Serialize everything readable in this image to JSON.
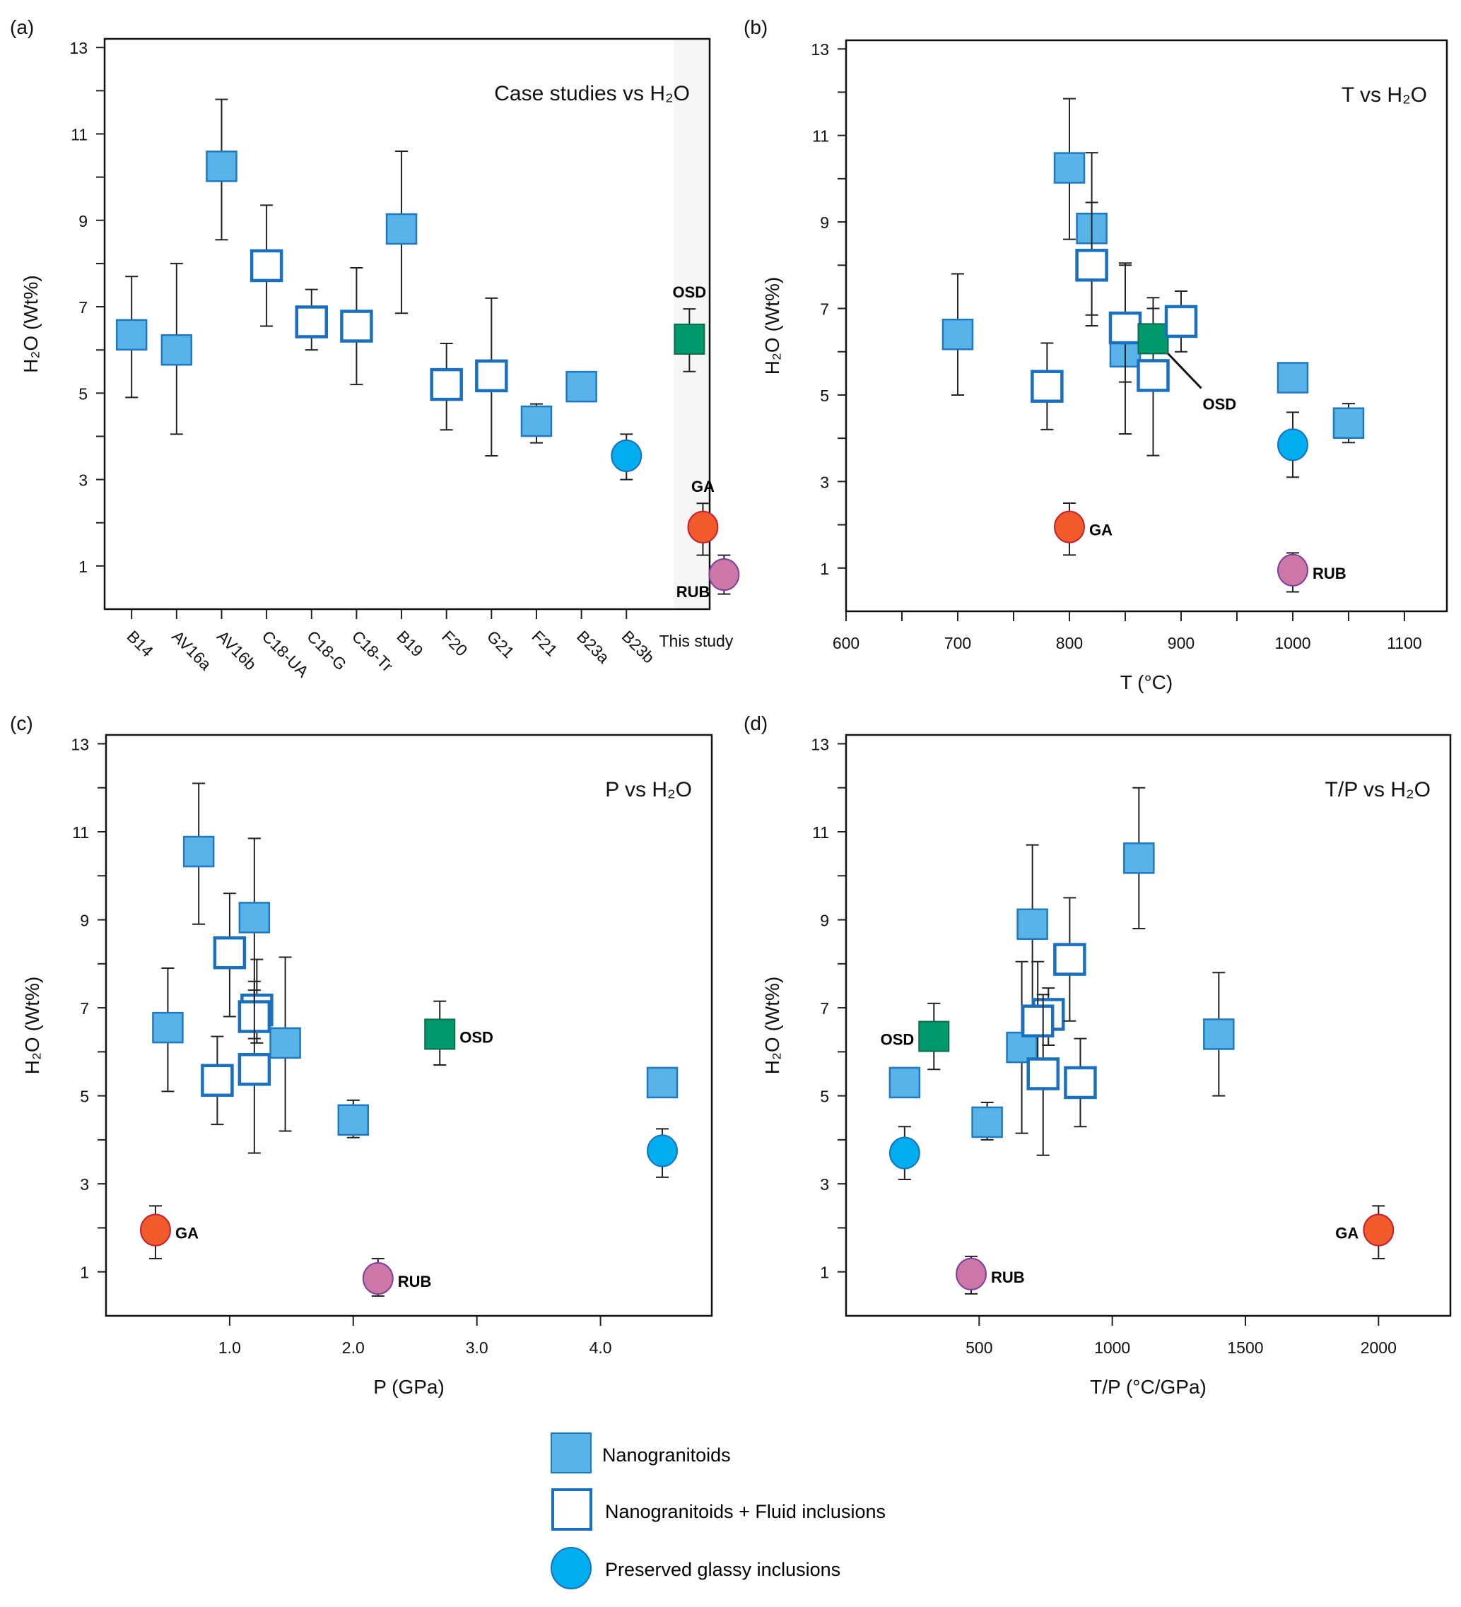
{
  "figure": {
    "legend": [
      {
        "key": "nano",
        "label": "Nanogranitoids",
        "marker": "filled-square"
      },
      {
        "key": "nanofi",
        "label": "Nanogranitoids + Fluid inclusions",
        "marker": "open-square"
      },
      {
        "key": "glass",
        "label": "Preserved glassy inclusions",
        "marker": "circle"
      }
    ],
    "colors": {
      "nano_fill": "#58b4e8",
      "nano_stroke": "#1f78c1",
      "open_stroke": "#1a70bf",
      "glass_fill": "#00aeef",
      "glass_stroke": "#1a70bf",
      "osd_fill": "#00996b",
      "osd_stroke": "#0b6b4b",
      "ga_fill": "#f15a2b",
      "ga_stroke": "#c4202f",
      "rub_fill": "#cc77a6",
      "rub_stroke": "#7b3fa0",
      "shade": "#f6f6f6"
    }
  },
  "chart_data": [
    {
      "id": "a",
      "panel_label": "(a)",
      "type": "scatter",
      "title": "Case studies vs H₂O",
      "xlabel": "",
      "ylabel": "H₂O (Wt%)",
      "ylim": [
        0,
        13.2
      ],
      "yticks": [
        1,
        3,
        5,
        7,
        9,
        11,
        13
      ],
      "categories": [
        "B14",
        "AV16a",
        "AV16b",
        "C18-UA",
        "C18-G",
        "C18-Tr",
        "B19",
        "F20",
        "G21",
        "F21",
        "B23a",
        "B23b",
        "This study"
      ],
      "shaded_category": "This study",
      "points": [
        {
          "x": "B14",
          "y": 6.35,
          "err": [
            4.9,
            7.7
          ],
          "kind": "nano"
        },
        {
          "x": "AV16a",
          "y": 6.0,
          "err": [
            4.05,
            8.0
          ],
          "kind": "nano"
        },
        {
          "x": "AV16b",
          "y": 10.25,
          "err": [
            8.55,
            11.8
          ],
          "kind": "nano"
        },
        {
          "x": "C18-UA",
          "y": 7.95,
          "err": [
            6.55,
            9.35
          ],
          "kind": "nanofi"
        },
        {
          "x": "C18-G",
          "y": 6.65,
          "err": [
            6.0,
            7.4
          ],
          "kind": "nanofi"
        },
        {
          "x": "C18-Tr",
          "y": 6.55,
          "err": [
            5.2,
            7.9
          ],
          "kind": "nanofi"
        },
        {
          "x": "B19",
          "y": 8.8,
          "err": [
            6.85,
            10.6
          ],
          "kind": "nano"
        },
        {
          "x": "F20",
          "y": 5.2,
          "err": [
            4.15,
            6.15
          ],
          "kind": "nanofi"
        },
        {
          "x": "G21",
          "y": 5.4,
          "err": [
            3.55,
            7.2
          ],
          "kind": "nanofi"
        },
        {
          "x": "F21",
          "y": 4.35,
          "err": [
            3.85,
            4.75
          ],
          "kind": "nano"
        },
        {
          "x": "B23a",
          "y": 5.15,
          "err": null,
          "kind": "nano"
        },
        {
          "x": "B23b",
          "y": 3.55,
          "err": [
            3.0,
            4.05
          ],
          "kind": "glass"
        },
        {
          "x": "This study",
          "offset": -0.15,
          "y": 6.25,
          "err": [
            5.5,
            6.95
          ],
          "kind": "osd",
          "label": "OSD",
          "label_pos": "above"
        },
        {
          "x": "This study",
          "offset": 0.15,
          "y": 1.9,
          "err": [
            1.25,
            2.45
          ],
          "kind": "ga",
          "label": "GA",
          "label_pos": "above"
        },
        {
          "x": "This study",
          "offset": 0.62,
          "y": 0.8,
          "err": [
            0.35,
            1.25
          ],
          "kind": "rub",
          "label": "RUB",
          "label_pos": "below-left"
        }
      ]
    },
    {
      "id": "b",
      "panel_label": "(b)",
      "type": "scatter",
      "title": "T vs H₂O",
      "xlabel": "T (°C)",
      "ylabel": "H₂O (Wt%)",
      "xlim": [
        600,
        1138
      ],
      "ylim": [
        0,
        13.2
      ],
      "xticks": [
        600,
        700,
        800,
        900,
        1000,
        1100
      ],
      "xminor": [
        650,
        750,
        850,
        950,
        1050
      ],
      "yticks": [
        1,
        3,
        5,
        7,
        9,
        11,
        13
      ],
      "points": [
        {
          "x": 700,
          "y": 6.4,
          "err": [
            5.0,
            7.8
          ],
          "kind": "nano"
        },
        {
          "x": 780,
          "y": 5.2,
          "err": [
            4.2,
            6.2
          ],
          "kind": "nanofi"
        },
        {
          "x": 800,
          "y": 10.25,
          "err": [
            8.6,
            11.85
          ],
          "kind": "nano"
        },
        {
          "x": 820,
          "y": 8.85,
          "err": [
            6.85,
            10.6
          ],
          "kind": "nano"
        },
        {
          "x": 820,
          "y": 8.0,
          "err": [
            6.6,
            9.45
          ],
          "kind": "nanofi"
        },
        {
          "x": 850,
          "y": 6.0,
          "err": [
            4.1,
            8.0
          ],
          "kind": "nano"
        },
        {
          "x": 850,
          "y": 6.55,
          "err": [
            5.3,
            8.05
          ],
          "kind": "nanofi"
        },
        {
          "x": 875,
          "y": 5.45,
          "err": [
            3.6,
            7.0
          ],
          "kind": "nanofi"
        },
        {
          "x": 875,
          "y": 6.3,
          "err": [
            6.0,
            7.25
          ],
          "kind": "osd",
          "label": "OSD",
          "label_pos": "leader"
        },
        {
          "x": 900,
          "y": 6.7,
          "err": [
            6.0,
            7.4
          ],
          "kind": "nanofi"
        },
        {
          "x": 1000,
          "y": 5.4,
          "err": null,
          "kind": "nano"
        },
        {
          "x": 1000,
          "y": 3.85,
          "err": [
            3.1,
            4.6
          ],
          "kind": "glass"
        },
        {
          "x": 1050,
          "y": 4.35,
          "err": [
            3.9,
            4.8
          ],
          "kind": "nano"
        },
        {
          "x": 800,
          "y": 1.95,
          "err": [
            1.3,
            2.5
          ],
          "kind": "ga",
          "label": "GA",
          "label_pos": "right"
        },
        {
          "x": 1000,
          "y": 0.95,
          "err": [
            0.45,
            1.35
          ],
          "kind": "rub",
          "label": "RUB",
          "label_pos": "right"
        }
      ]
    },
    {
      "id": "c",
      "panel_label": "(c)",
      "type": "scatter",
      "title": "P vs H₂O",
      "xlabel": "P (GPa)",
      "ylabel": "H₂O (Wt%)",
      "xlim": [
        0,
        4.9
      ],
      "ylim": [
        0,
        13.2
      ],
      "xticks": [
        1.0,
        2.0,
        3.0,
        4.0
      ],
      "xtick_labels": [
        "1.0",
        "2.0",
        "3.0",
        "4.0"
      ],
      "yticks": [
        1,
        3,
        5,
        7,
        9,
        11,
        13
      ],
      "points": [
        {
          "x": 0.5,
          "y": 6.55,
          "err": [
            5.1,
            7.9
          ],
          "kind": "nano"
        },
        {
          "x": 0.75,
          "y": 10.55,
          "err": [
            8.9,
            12.1
          ],
          "kind": "nano"
        },
        {
          "x": 0.9,
          "y": 5.35,
          "err": [
            4.35,
            6.35
          ],
          "kind": "nanofi"
        },
        {
          "x": 1.0,
          "y": 8.25,
          "err": [
            6.8,
            9.6
          ],
          "kind": "nanofi"
        },
        {
          "x": 1.2,
          "y": 9.05,
          "err": [
            7.1,
            10.85
          ],
          "kind": "nano"
        },
        {
          "x": 1.22,
          "y": 6.95,
          "err": [
            6.2,
            8.1
          ],
          "kind": "nanofi"
        },
        {
          "x": 1.2,
          "y": 6.8,
          "err": [
            6.3,
            7.4
          ],
          "kind": "nanofi"
        },
        {
          "x": 1.2,
          "y": 5.6,
          "err": [
            3.7,
            7.6
          ],
          "kind": "nanofi"
        },
        {
          "x": 1.45,
          "y": 6.2,
          "err": [
            4.2,
            8.15
          ],
          "kind": "nano"
        },
        {
          "x": 2.0,
          "y": 4.45,
          "err": [
            4.05,
            4.9
          ],
          "kind": "nano"
        },
        {
          "x": 2.7,
          "y": 6.4,
          "err": [
            5.7,
            7.15
          ],
          "kind": "osd",
          "label": "OSD",
          "label_pos": "right"
        },
        {
          "x": 4.5,
          "y": 5.3,
          "err": null,
          "kind": "nano"
        },
        {
          "x": 4.5,
          "y": 3.75,
          "err": [
            3.15,
            4.25
          ],
          "kind": "glass"
        },
        {
          "x": 0.4,
          "y": 1.95,
          "err": [
            1.3,
            2.5
          ],
          "kind": "ga",
          "label": "GA",
          "label_pos": "right"
        },
        {
          "x": 2.2,
          "y": 0.85,
          "err": [
            0.45,
            1.3
          ],
          "kind": "rub",
          "label": "RUB",
          "label_pos": "right"
        }
      ]
    },
    {
      "id": "d",
      "panel_label": "(d)",
      "type": "scatter",
      "title": "T/P vs H₂O",
      "xlabel": "T/P (°C/GPa)",
      "ylabel": "H₂O (Wt%)",
      "xlim": [
        0,
        2270
      ],
      "ylim": [
        0,
        13.2
      ],
      "xticks": [
        500,
        1000,
        1500,
        2000
      ],
      "yticks": [
        1,
        3,
        5,
        7,
        9,
        11,
        13
      ],
      "points": [
        {
          "x": 220,
          "y": 5.3,
          "err": null,
          "kind": "nano"
        },
        {
          "x": 220,
          "y": 3.7,
          "err": [
            3.1,
            4.3
          ],
          "kind": "glass"
        },
        {
          "x": 330,
          "y": 6.35,
          "err": [
            5.6,
            7.1
          ],
          "kind": "osd",
          "label": "OSD",
          "label_pos": "left"
        },
        {
          "x": 530,
          "y": 4.4,
          "err": [
            4.0,
            4.85
          ],
          "kind": "nano"
        },
        {
          "x": 660,
          "y": 6.1,
          "err": [
            4.15,
            8.05
          ],
          "kind": "nano"
        },
        {
          "x": 700,
          "y": 8.9,
          "err": [
            6.9,
            10.7
          ],
          "kind": "nano"
        },
        {
          "x": 760,
          "y": 6.85,
          "err": [
            6.15,
            7.45
          ],
          "kind": "nanofi"
        },
        {
          "x": 720,
          "y": 6.7,
          "err": [
            5.4,
            8.05
          ],
          "kind": "nanofi"
        },
        {
          "x": 740,
          "y": 5.5,
          "err": [
            3.65,
            7.3
          ],
          "kind": "nanofi"
        },
        {
          "x": 840,
          "y": 8.1,
          "err": [
            6.7,
            9.5
          ],
          "kind": "nanofi"
        },
        {
          "x": 880,
          "y": 5.3,
          "err": [
            4.3,
            6.3
          ],
          "kind": "nanofi"
        },
        {
          "x": 1100,
          "y": 10.4,
          "err": [
            8.8,
            12.0
          ],
          "kind": "nano"
        },
        {
          "x": 1400,
          "y": 6.4,
          "err": [
            5.0,
            7.8
          ],
          "kind": "nano"
        },
        {
          "x": 2000,
          "y": 1.95,
          "err": [
            1.3,
            2.5
          ],
          "kind": "ga",
          "label": "GA",
          "label_pos": "left"
        },
        {
          "x": 470,
          "y": 0.95,
          "err": [
            0.5,
            1.35
          ],
          "kind": "rub",
          "label": "RUB",
          "label_pos": "right"
        }
      ]
    }
  ]
}
